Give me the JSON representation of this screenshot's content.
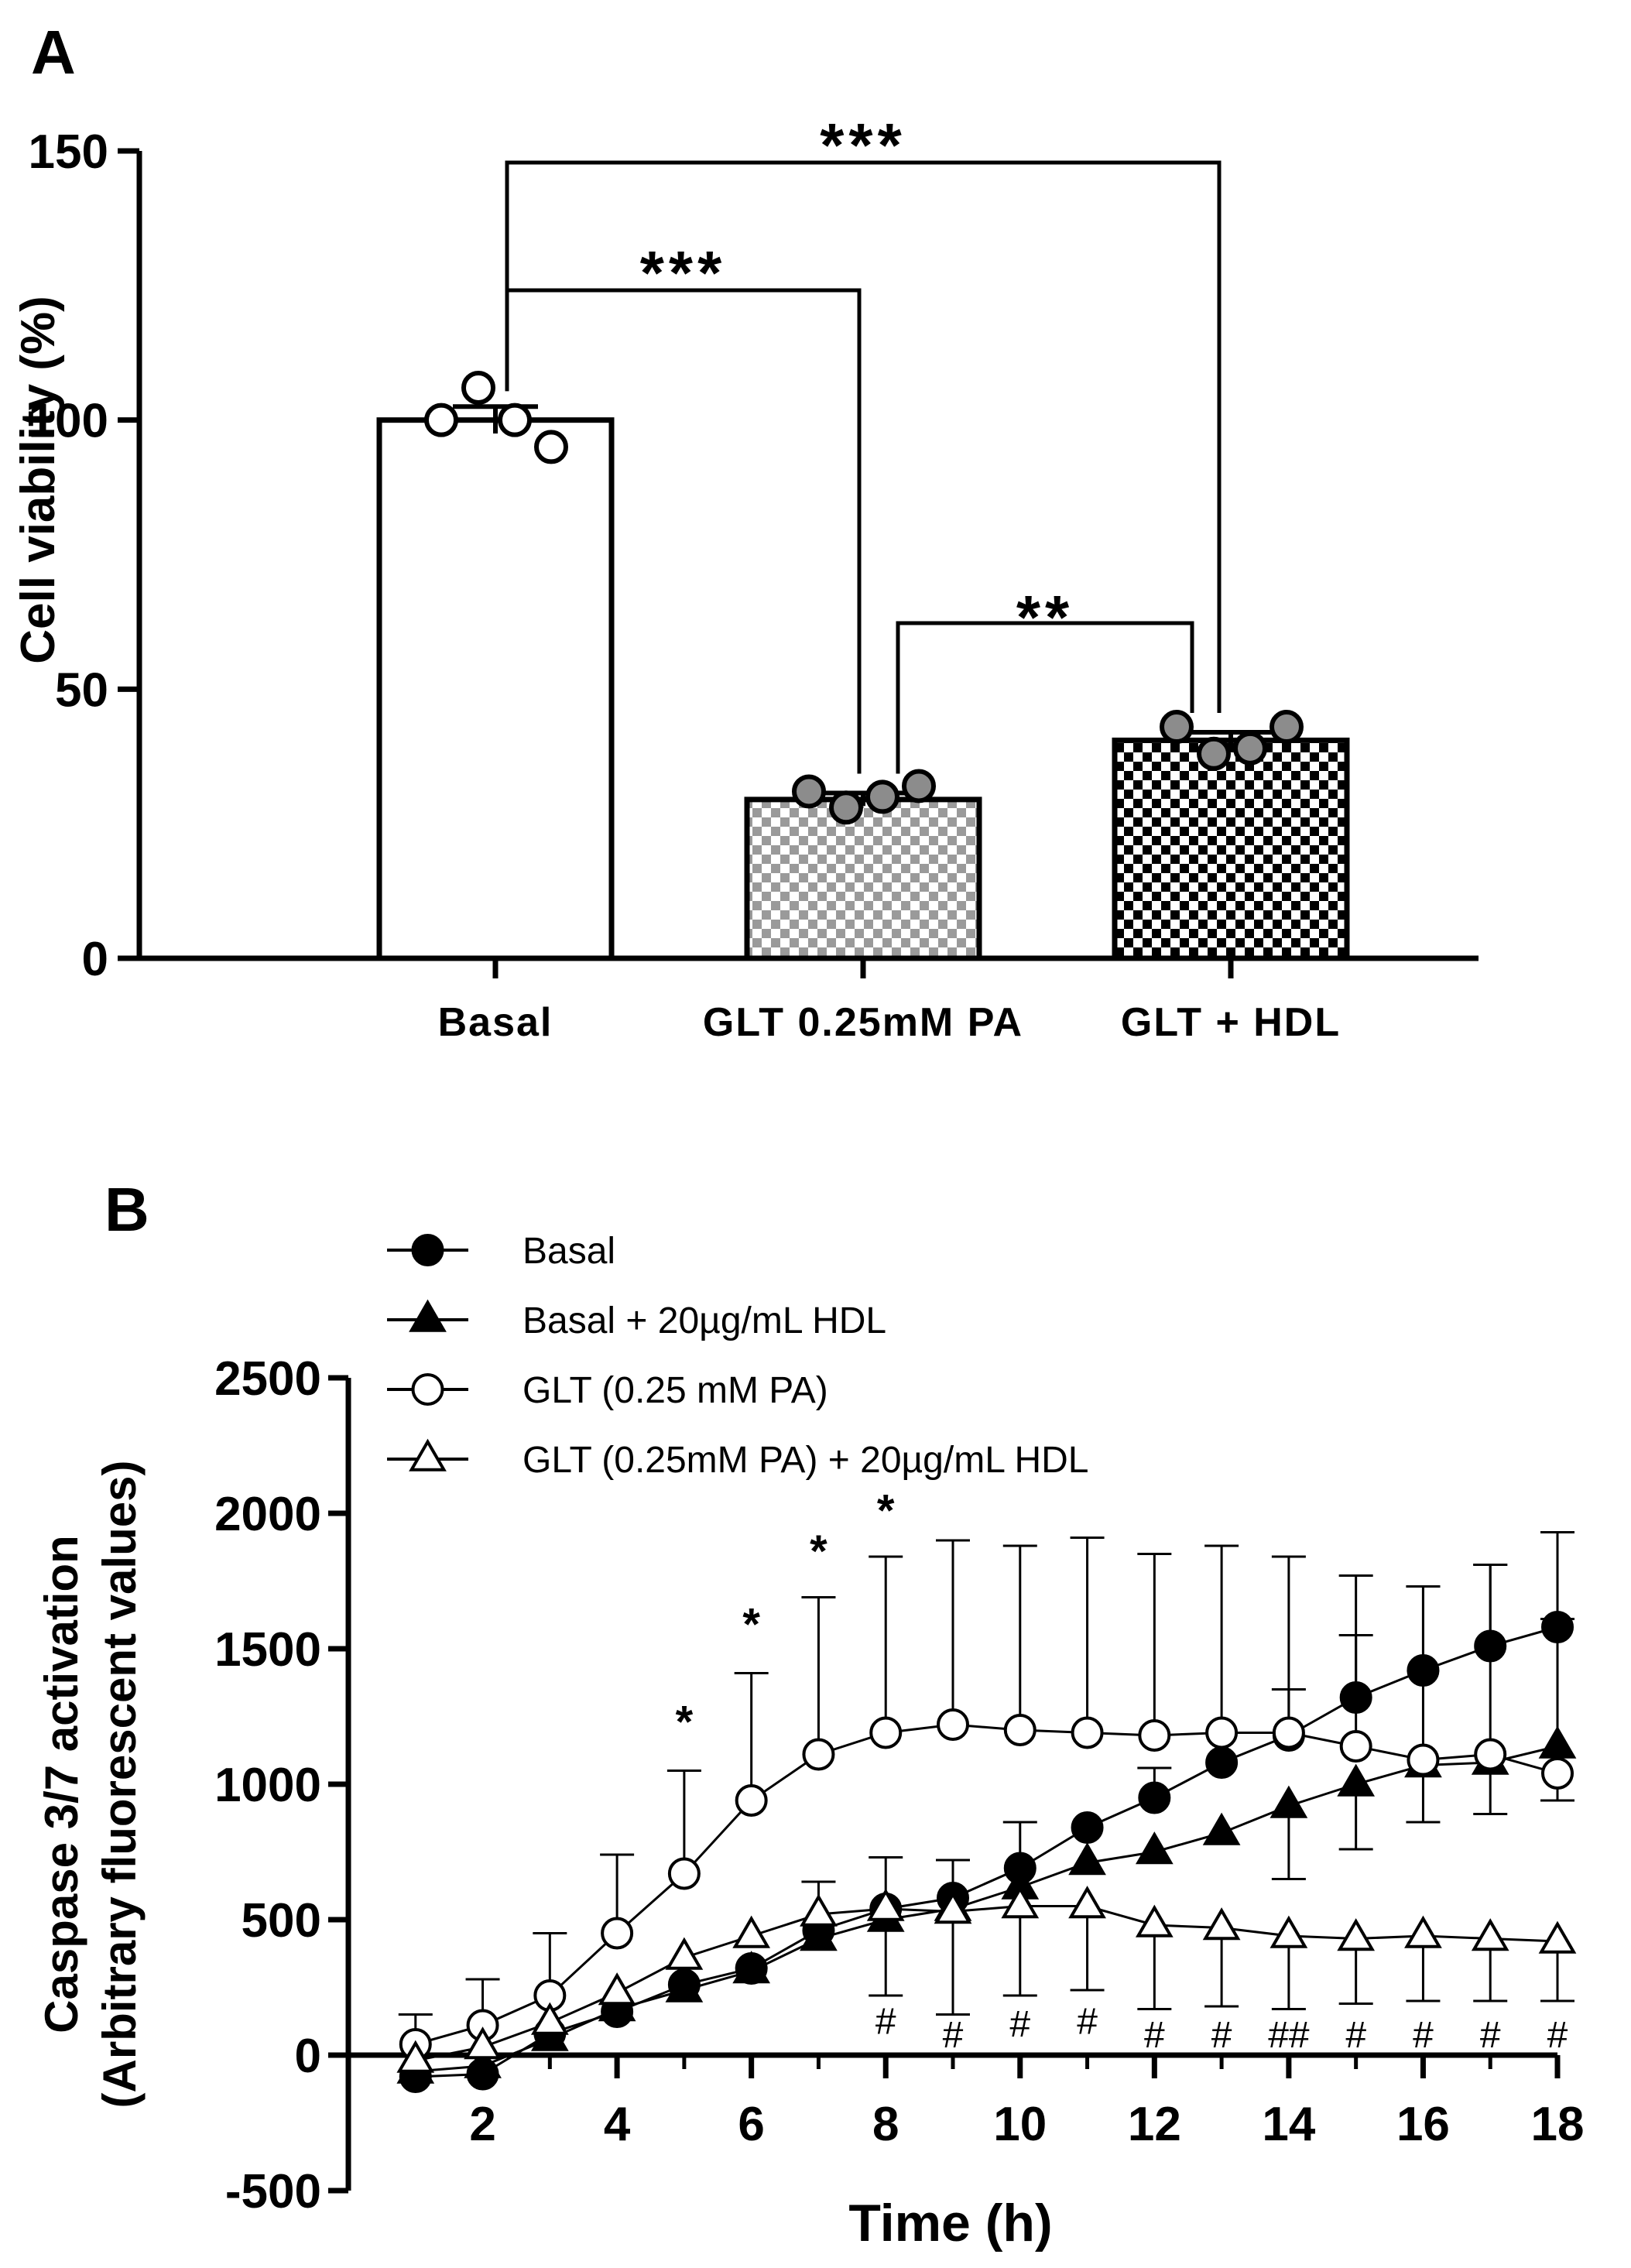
{
  "panel_a": {
    "label": "A",
    "chart_data": {
      "type": "bar",
      "categories": [
        "Basal",
        "GLT 0.25mM PA",
        "GLT + HDL"
      ],
      "values": [
        100,
        29.5,
        40.5
      ],
      "error": [
        2.5,
        1.2,
        1.5
      ],
      "points": [
        [
          100,
          106,
          100,
          95
        ],
        [
          31,
          28,
          30,
          32
        ],
        [
          43,
          38,
          39,
          43
        ]
      ],
      "patterns": [
        "none",
        "grey-checker",
        "black-checker"
      ],
      "ylabel": "Cell viability (%)",
      "ylim": [
        0,
        150
      ],
      "yticks": [
        0,
        50,
        100,
        150
      ],
      "significance": [
        {
          "from": 0,
          "to": 2,
          "label": "***"
        },
        {
          "from": 0,
          "to": 1,
          "label": "***"
        },
        {
          "from": 1,
          "to": 2,
          "label": "**"
        }
      ]
    }
  },
  "panel_b": {
    "label": "B",
    "chart_data": {
      "type": "line",
      "xlabel": "Time (h)",
      "ylabel_line1": "Caspase 3/7 activation",
      "ylabel_line2": "(Arbitrary fluorescent values)",
      "xlim": [
        0,
        18
      ],
      "ylim": [
        -500,
        2500
      ],
      "xticks": [
        2,
        4,
        6,
        8,
        10,
        12,
        14,
        16,
        18
      ],
      "yticks": [
        -500,
        0,
        500,
        1000,
        1500,
        2000,
        2500
      ],
      "x": [
        1,
        2,
        3,
        4,
        5,
        6,
        7,
        8,
        9,
        10,
        11,
        12,
        13,
        14,
        15,
        16,
        17,
        18
      ],
      "series": [
        {
          "name": "Basal",
          "marker": "circle",
          "filled": true,
          "values": [
            -80,
            -70,
            80,
            160,
            260,
            320,
            460,
            540,
            580,
            690,
            840,
            950,
            1080,
            1180,
            1320,
            1420,
            1510,
            1580
          ],
          "err_up": [
            0,
            0,
            0,
            0,
            0,
            0,
            0,
            0,
            0,
            0,
            0,
            110,
            0,
            170,
            230,
            310,
            300,
            350
          ],
          "err_down": [
            0,
            0,
            0,
            0,
            0,
            0,
            0,
            0,
            0,
            0,
            0,
            0,
            0,
            0,
            0,
            0,
            0,
            0
          ]
        },
        {
          "name": "Basal + 20µg/mL HDL",
          "marker": "triangle",
          "filled": true,
          "values": [
            -60,
            -40,
            60,
            170,
            240,
            310,
            430,
            500,
            540,
            620,
            710,
            750,
            820,
            920,
            1000,
            1070,
            1080,
            1140
          ],
          "err_up": [
            0,
            0,
            0,
            0,
            0,
            0,
            0,
            0,
            0,
            0,
            0,
            0,
            0,
            0,
            0,
            0,
            0,
            0
          ],
          "err_down": [
            0,
            0,
            0,
            0,
            0,
            0,
            0,
            0,
            0,
            0,
            0,
            0,
            0,
            270,
            240,
            210,
            190,
            200
          ]
        },
        {
          "name": "GLT (0.25 mM PA)",
          "marker": "circle",
          "filled": false,
          "values": [
            40,
            110,
            220,
            450,
            670,
            940,
            1110,
            1190,
            1220,
            1200,
            1190,
            1180,
            1190,
            1190,
            1140,
            1090,
            1110,
            1040
          ],
          "err_up": [
            110,
            170,
            230,
            290,
            380,
            470,
            580,
            650,
            680,
            680,
            720,
            670,
            690,
            650,
            630,
            640,
            700,
            570
          ],
          "err_down": [
            0,
            0,
            0,
            0,
            0,
            0,
            0,
            0,
            0,
            0,
            0,
            0,
            0,
            0,
            0,
            0,
            0,
            0
          ]
        },
        {
          "name": "GLT (0.25mM PA) + 20µg/mL HDL",
          "marker": "triangle",
          "filled": false,
          "values": [
            -20,
            30,
            120,
            230,
            360,
            440,
            520,
            540,
            530,
            550,
            550,
            480,
            470,
            440,
            430,
            440,
            430,
            420
          ],
          "err_up": [
            0,
            0,
            0,
            0,
            0,
            0,
            120,
            190,
            190,
            310,
            0,
            0,
            0,
            0,
            0,
            0,
            0,
            0
          ],
          "err_down": [
            0,
            0,
            0,
            0,
            0,
            0,
            0,
            320,
            380,
            330,
            310,
            310,
            290,
            270,
            240,
            240,
            230,
            220
          ]
        }
      ],
      "stars": [
        {
          "x": 5,
          "y": 1230,
          "label": "*"
        },
        {
          "x": 6,
          "y": 1590,
          "label": "*"
        },
        {
          "x": 7,
          "y": 1860,
          "label": "*"
        },
        {
          "x": 8,
          "y": 2010,
          "label": "*"
        }
      ],
      "hashes": [
        {
          "x": 8,
          "y": 130,
          "label": "#"
        },
        {
          "x": 9,
          "y": 80,
          "label": "#"
        },
        {
          "x": 10,
          "y": 120,
          "label": "#"
        },
        {
          "x": 11,
          "y": 130,
          "label": "#"
        },
        {
          "x": 12,
          "y": 80,
          "label": "#"
        },
        {
          "x": 13,
          "y": 80,
          "label": "#"
        },
        {
          "x": 14,
          "y": 80,
          "label": "##"
        },
        {
          "x": 15,
          "y": 80,
          "label": "#"
        },
        {
          "x": 16,
          "y": 80,
          "label": "#"
        },
        {
          "x": 17,
          "y": 80,
          "label": "#"
        },
        {
          "x": 18,
          "y": 80,
          "label": "#"
        }
      ]
    }
  }
}
